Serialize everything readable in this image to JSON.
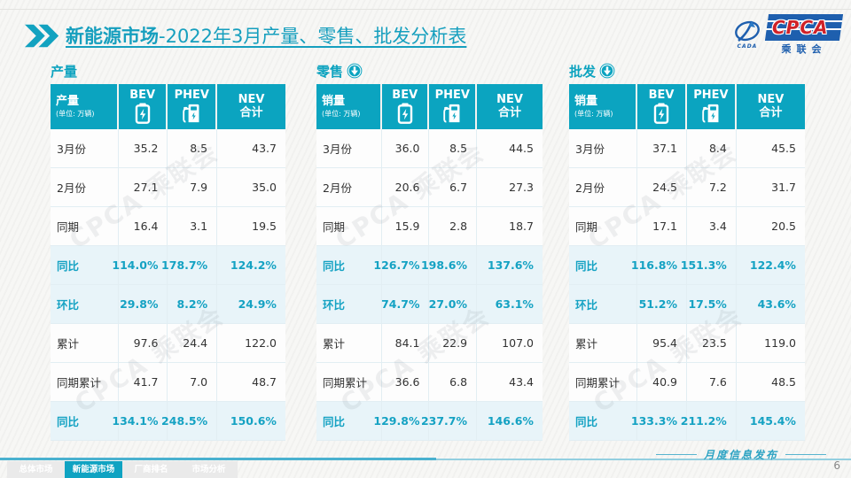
{
  "title": {
    "highlight": "新能源市场",
    "rest": "-2022年3月产量、零售、批发分析表"
  },
  "logo": {
    "acronym": "CPCA",
    "emblem_caption": "CADA",
    "org_name": "乘联会"
  },
  "unit_note": "(单位: 万辆)",
  "columns": {
    "bev": "BEV",
    "phev": "PHEV",
    "nev_line1": "NEV",
    "nev_line2": "合计"
  },
  "watermark": "CPCA 乘联会",
  "tables": [
    {
      "section": "产量",
      "arrow": false,
      "label_header": "产量",
      "rows": [
        {
          "label": "3月份",
          "values": [
            "35.2",
            "8.5",
            "43.7"
          ],
          "highlight": false
        },
        {
          "label": "2月份",
          "values": [
            "27.1",
            "7.9",
            "35.0"
          ],
          "highlight": false
        },
        {
          "label": "同期",
          "values": [
            "16.4",
            "3.1",
            "19.5"
          ],
          "highlight": false
        },
        {
          "label": "同比",
          "values": [
            "114.0%",
            "178.7%",
            "124.2%"
          ],
          "highlight": true
        },
        {
          "label": "环比",
          "values": [
            "29.8%",
            "8.2%",
            "24.9%"
          ],
          "highlight": true
        },
        {
          "label": "累计",
          "values": [
            "97.6",
            "24.4",
            "122.0"
          ],
          "highlight": false
        },
        {
          "label": "同期累计",
          "values": [
            "41.7",
            "7.0",
            "48.7"
          ],
          "highlight": false
        },
        {
          "label": "同比",
          "values": [
            "134.1%",
            "248.5%",
            "150.6%"
          ],
          "highlight": true
        }
      ]
    },
    {
      "section": "零售",
      "arrow": true,
      "label_header": "销量",
      "rows": [
        {
          "label": "3月份",
          "values": [
            "36.0",
            "8.5",
            "44.5"
          ],
          "highlight": false
        },
        {
          "label": "2月份",
          "values": [
            "20.6",
            "6.7",
            "27.3"
          ],
          "highlight": false
        },
        {
          "label": "同期",
          "values": [
            "15.9",
            "2.8",
            "18.7"
          ],
          "highlight": false
        },
        {
          "label": "同比",
          "values": [
            "126.7%",
            "198.6%",
            "137.6%"
          ],
          "highlight": true
        },
        {
          "label": "环比",
          "values": [
            "74.7%",
            "27.0%",
            "63.1%"
          ],
          "highlight": true
        },
        {
          "label": "累计",
          "values": [
            "84.1",
            "22.9",
            "107.0"
          ],
          "highlight": false
        },
        {
          "label": "同期累计",
          "values": [
            "36.6",
            "6.8",
            "43.4"
          ],
          "highlight": false
        },
        {
          "label": "同比",
          "values": [
            "129.8%",
            "237.7%",
            "146.6%"
          ],
          "highlight": true
        }
      ]
    },
    {
      "section": "批发",
      "arrow": true,
      "label_header": "销量",
      "rows": [
        {
          "label": "3月份",
          "values": [
            "37.1",
            "8.4",
            "45.5"
          ],
          "highlight": false
        },
        {
          "label": "2月份",
          "values": [
            "24.5",
            "7.2",
            "31.7"
          ],
          "highlight": false
        },
        {
          "label": "同期",
          "values": [
            "17.1",
            "3.4",
            "20.5"
          ],
          "highlight": false
        },
        {
          "label": "同比",
          "values": [
            "116.8%",
            "151.3%",
            "122.4%"
          ],
          "highlight": true
        },
        {
          "label": "环比",
          "values": [
            "51.2%",
            "17.5%",
            "43.6%"
          ],
          "highlight": true
        },
        {
          "label": "累计",
          "values": [
            "95.4",
            "23.5",
            "119.0"
          ],
          "highlight": false
        },
        {
          "label": "同期累计",
          "values": [
            "40.9",
            "7.6",
            "48.5"
          ],
          "highlight": false
        },
        {
          "label": "同比",
          "values": [
            "133.3%",
            "211.2%",
            "145.4%"
          ],
          "highlight": true
        }
      ]
    }
  ],
  "footer": {
    "tabs": [
      {
        "label": "总体市场",
        "active": false
      },
      {
        "label": "新能源市场",
        "active": true
      },
      {
        "label": "厂商排名",
        "active": false
      },
      {
        "label": "市场分析",
        "active": false
      }
    ],
    "caption": "月度信息发布",
    "page": "6"
  },
  "colors": {
    "teal": "#0ba4c0",
    "highlight_bg": "#e8f4f9",
    "teal_text": "#15a2c3"
  }
}
